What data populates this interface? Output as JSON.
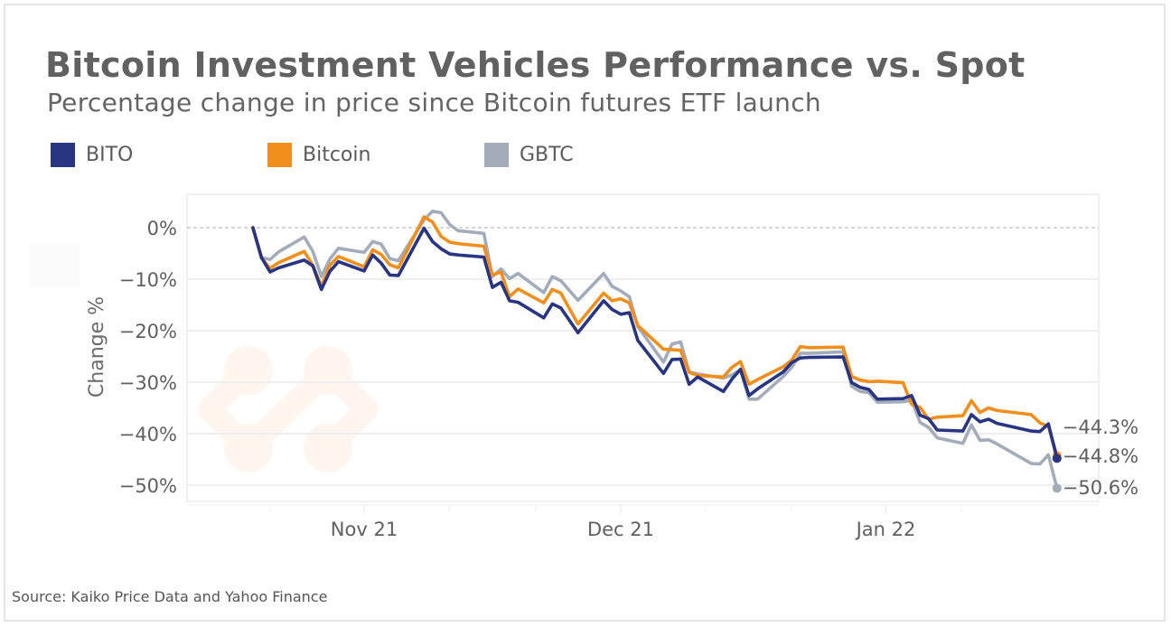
{
  "header": {
    "title": "Bitcoin Investment Vehicles Performance vs. Spot",
    "subtitle": "Percentage change in price since Bitcoin futures ETF launch"
  },
  "legend": [
    {
      "label": "BITO",
      "color": "#283583"
    },
    {
      "label": "Bitcoin",
      "color": "#f28e1c"
    },
    {
      "label": "GBTC",
      "color": "#a3acb9"
    }
  ],
  "footer": {
    "source": "Source: Kaiko Price Data and Yahoo Finance"
  },
  "chart_data": {
    "type": "line",
    "title": "Bitcoin Investment Vehicles Performance vs. Spot",
    "subtitle": "Percentage change in price since Bitcoin futures ETF launch",
    "xlabel": "",
    "ylabel": "Change %",
    "ylim": [
      -52,
      5
    ],
    "yticks": [
      0,
      -10,
      -20,
      -30,
      -40,
      -50
    ],
    "ytick_labels": [
      "0%",
      "−10%",
      "−20%",
      "−30%",
      "−40%",
      "−50%"
    ],
    "xlim": [
      "2021-10-14",
      "2022-01-31"
    ],
    "xticks": [
      "2021-11-01",
      "2021-12-01",
      "2022-01-01"
    ],
    "xtick_labels": [
      "Nov 21",
      "Dec 21",
      "Jan 22"
    ],
    "grid": true,
    "zero_line": "dashed",
    "legend_position": "top-left",
    "x": [
      "2021-10-19",
      "2021-10-20",
      "2021-10-21",
      "2021-10-22",
      "2021-10-25",
      "2021-10-26",
      "2021-10-27",
      "2021-10-28",
      "2021-10-29",
      "2021-11-01",
      "2021-11-02",
      "2021-11-03",
      "2021-11-04",
      "2021-11-05",
      "2021-11-08",
      "2021-11-09",
      "2021-11-10",
      "2021-11-11",
      "2021-11-12",
      "2021-11-15",
      "2021-11-16",
      "2021-11-17",
      "2021-11-18",
      "2021-11-19",
      "2021-11-22",
      "2021-11-23",
      "2021-11-24",
      "2021-11-26",
      "2021-11-29",
      "2021-11-30",
      "2021-12-01",
      "2021-12-02",
      "2021-12-03",
      "2021-12-06",
      "2021-12-07",
      "2021-12-08",
      "2021-12-09",
      "2021-12-10",
      "2021-12-13",
      "2021-12-14",
      "2021-12-15",
      "2021-12-16",
      "2021-12-17",
      "2021-12-20",
      "2021-12-21",
      "2021-12-22",
      "2021-12-23",
      "2021-12-27",
      "2021-12-28",
      "2021-12-29",
      "2021-12-30",
      "2021-12-31",
      "2022-01-03",
      "2022-01-04",
      "2022-01-05",
      "2022-01-06",
      "2022-01-07",
      "2022-01-10",
      "2022-01-11",
      "2022-01-12",
      "2022-01-13",
      "2022-01-14",
      "2022-01-18",
      "2022-01-19",
      "2022-01-20",
      "2022-01-21"
    ],
    "series": [
      {
        "name": "BITO",
        "color": "#283583",
        "end_label": "−44.8%",
        "values": [
          0.0,
          -5.8,
          -8.6,
          -7.8,
          -6.3,
          -7.4,
          -12.0,
          -8.5,
          -6.6,
          -8.4,
          -5.3,
          -6.9,
          -9.2,
          -9.3,
          -0.1,
          -2.7,
          -4.1,
          -5.1,
          -5.3,
          -5.7,
          -11.6,
          -10.6,
          -14.2,
          -14.5,
          -17.5,
          -14.8,
          -15.6,
          -20.4,
          -14.2,
          -15.9,
          -16.8,
          -16.5,
          -21.9,
          -28.3,
          -25.6,
          -25.5,
          -30.4,
          -29.0,
          -31.8,
          -29.4,
          -27.5,
          -32.6,
          -31.3,
          -28.0,
          -26.2,
          -25.3,
          -25.2,
          -25.1,
          -30.1,
          -31.0,
          -31.4,
          -33.3,
          -33.2,
          -32.6,
          -36.4,
          -37.1,
          -39.3,
          -39.5,
          -36.3,
          -37.7,
          -37.2,
          -38.0,
          -39.5,
          -39.6,
          -38.1,
          -44.8
        ]
      },
      {
        "name": "Bitcoin",
        "color": "#f28e1c",
        "end_label": "−44.3%",
        "values": [
          0.0,
          -5.9,
          -7.9,
          -6.8,
          -4.6,
          -7.3,
          -11.4,
          -7.3,
          -5.6,
          -7.6,
          -4.3,
          -5.2,
          -7.2,
          -7.8,
          2.1,
          1.1,
          -1.7,
          -2.8,
          -3.1,
          -3.6,
          -9.2,
          -8.6,
          -13.4,
          -11.9,
          -14.6,
          -12.0,
          -12.7,
          -18.7,
          -12.7,
          -14.2,
          -13.8,
          -14.6,
          -19.0,
          -23.6,
          -23.7,
          -23.8,
          -28.1,
          -28.7,
          -29.0,
          -27.1,
          -26.0,
          -30.4,
          -29.5,
          -27.0,
          -25.7,
          -23.1,
          -23.3,
          -23.2,
          -28.9,
          -29.6,
          -29.9,
          -29.8,
          -30.1,
          -34.3,
          -34.9,
          -37.2,
          -36.8,
          -36.5,
          -33.6,
          -35.9,
          -35.0,
          -35.5,
          -36.3,
          -37.9,
          -38.6,
          -44.3
        ]
      },
      {
        "name": "GBTC",
        "color": "#a3acb9",
        "end_label": "−50.6%",
        "values": [
          0.0,
          -5.8,
          -6.2,
          -4.7,
          -1.8,
          -4.6,
          -9.5,
          -6.1,
          -4.0,
          -4.8,
          -2.7,
          -3.2,
          -6.0,
          -6.4,
          1.5,
          3.2,
          2.9,
          0.6,
          -0.6,
          -1.1,
          -9.5,
          -8.0,
          -9.9,
          -8.9,
          -12.6,
          -9.5,
          -10.3,
          -14.1,
          -8.9,
          -11.4,
          -12.3,
          -13.4,
          -19.2,
          -26.1,
          -22.6,
          -22.2,
          -28.0,
          -28.4,
          -29.2,
          -28.6,
          -27.6,
          -33.3,
          -33.3,
          -28.9,
          -27.1,
          -24.4,
          -24.4,
          -24.1,
          -30.8,
          -31.8,
          -32.0,
          -33.9,
          -33.8,
          -33.5,
          -37.8,
          -38.8,
          -40.8,
          -41.9,
          -38.3,
          -41.3,
          -41.2,
          -42.0,
          -45.8,
          -45.9,
          -44.1,
          -50.6
        ]
      }
    ],
    "end_labels_order": [
      "−44.3%",
      "−44.8%",
      "−50.6%"
    ]
  }
}
